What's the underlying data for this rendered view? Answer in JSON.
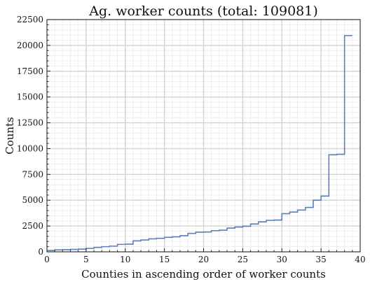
{
  "chart_data": {
    "type": "line",
    "title": "Ag. worker counts (total: 109081)",
    "xlabel": "Counties in ascending order of worker counts",
    "ylabel": "Counts",
    "xlim": [
      0,
      40
    ],
    "ylim": [
      0,
      22500
    ],
    "xticks": [
      "0",
      "5",
      "10",
      "15",
      "20",
      "25",
      "30",
      "35",
      "40"
    ],
    "yticks": [
      "0",
      "2500",
      "5000",
      "7500",
      "10000",
      "12500",
      "15000",
      "17500",
      "20000",
      "22500"
    ],
    "grid": true,
    "line_color": "#5b7fba",
    "series": [
      {
        "values": [
          130,
          190,
          210,
          230,
          260,
          330,
          430,
          500,
          550,
          720,
          740,
          1060,
          1150,
          1260,
          1310,
          1400,
          1450,
          1560,
          1780,
          1900,
          1920,
          2050,
          2100,
          2300,
          2400,
          2480,
          2700,
          2900,
          3050,
          3080,
          3700,
          3850,
          4050,
          4300,
          5000,
          5400,
          9400,
          9450,
          20950
        ],
        "x": [
          0,
          1,
          2,
          3,
          4,
          5,
          6,
          7,
          8,
          9,
          10,
          11,
          12,
          13,
          14,
          15,
          16,
          17,
          18,
          19,
          20,
          21,
          22,
          23,
          24,
          25,
          26,
          27,
          28,
          29,
          30,
          31,
          32,
          33,
          34,
          35,
          36,
          37,
          38
        ]
      }
    ]
  }
}
